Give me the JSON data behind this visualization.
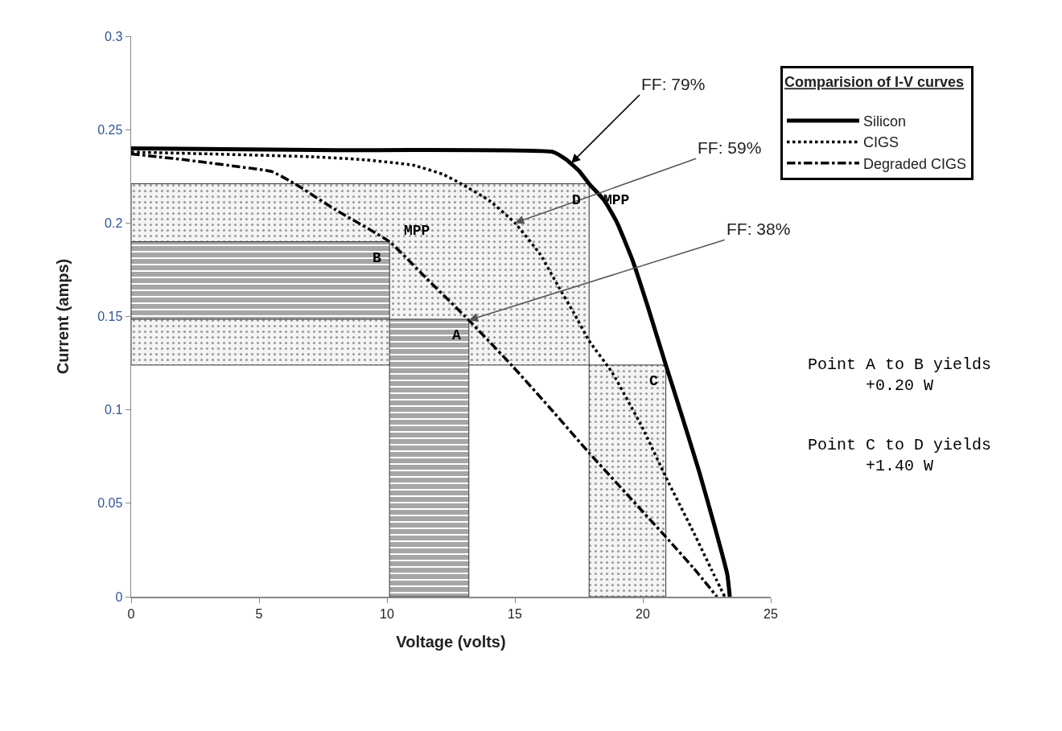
{
  "chart_data": {
    "type": "line",
    "xlabel": "Voltage (volts)",
    "ylabel": "Current (amps)",
    "legend_title": "Comparision of I-V curves",
    "legend": "top right",
    "grid": false,
    "xlim": [
      0,
      25
    ],
    "xticks": [
      0,
      5,
      10,
      15,
      20,
      25
    ],
    "ylim": [
      0,
      0.3
    ],
    "yticks": [
      0,
      0.05,
      0.1,
      0.15,
      0.2,
      0.25,
      0.3
    ],
    "series": [
      {
        "type": "area",
        "x": [
          0,
          17.9,
          17.9,
          0,
          0
        ],
        "values": [
          0.124,
          0.124,
          0.221,
          0.221,
          0.124
        ],
        "color": "#f4f4f4"
      },
      {
        "type": "area",
        "x": [
          17.9,
          20.9,
          20.9,
          17.9,
          17.9
        ],
        "values": [
          0,
          0,
          0.124,
          0.124,
          0
        ],
        "color": "#f4f4f4"
      },
      {
        "type": "area",
        "x": [
          0,
          10.1,
          10.1,
          0,
          0
        ],
        "values": [
          0.1485,
          0.1485,
          0.19,
          0.19,
          0.1485
        ],
        "color": "#a6a6a6"
      },
      {
        "type": "area",
        "x": [
          10.1,
          13.2,
          13.2,
          10.1,
          10.1
        ],
        "values": [
          0,
          0,
          0.1485,
          0.1485,
          0
        ],
        "color": "#a6a6a6"
      },
      {
        "name": "Silicon",
        "color": "#000000",
        "line_style": "solid",
        "x": [
          0,
          8,
          16.5,
          17,
          17.5,
          17.9,
          18.5,
          19,
          19.6,
          20.2,
          20.9,
          21.5,
          22.2,
          22.8,
          23.3,
          23.4
        ],
        "values": [
          0.24,
          0.239,
          0.238,
          0.234,
          0.228,
          0.221,
          0.212,
          0.2,
          0.18,
          0.155,
          0.124,
          0.098,
          0.067,
          0.038,
          0.012,
          0
        ]
      },
      {
        "name": "CIGS",
        "color": "#000000",
        "line_style": "dotted",
        "x": [
          0,
          3,
          7,
          9,
          11,
          12.2,
          12.9,
          14,
          15,
          16,
          16.7,
          17.3,
          17.9,
          18.8,
          20,
          20.9,
          22,
          22.7,
          23.2
        ],
        "values": [
          0.238,
          0.237,
          0.2355,
          0.234,
          0.231,
          0.226,
          0.221,
          0.212,
          0.2,
          0.183,
          0.166,
          0.152,
          0.137,
          0.12,
          0.09,
          0.064,
          0.034,
          0.014,
          0
        ]
      },
      {
        "name": "Degraded CIGS",
        "color": "#000000",
        "line_style": "dashdot",
        "x": [
          0,
          2,
          4,
          5.5,
          6.4,
          8,
          10.1,
          11.5,
          13.2,
          14.9,
          16.5,
          17.9,
          19.5,
          20.9,
          22,
          22.9
        ],
        "values": [
          0.237,
          0.234,
          0.2305,
          0.2275,
          0.221,
          0.207,
          0.19,
          0.171,
          0.148,
          0.1235,
          0.099,
          0.077,
          0.053,
          0.032,
          0.015,
          0
        ]
      }
    ],
    "annotations": [
      {
        "text": "FF: 79%",
        "x": 17.2,
        "y": 0.232
      },
      {
        "text": "FF: 59%",
        "x": 15,
        "y": 0.2
      },
      {
        "text": "FF: 38%",
        "x": 13.2,
        "y": 0.148
      },
      {
        "text": "MPP",
        "x": 10.1,
        "y": 0.19
      },
      {
        "text": "B",
        "x": 10.1,
        "y": 0.19
      },
      {
        "text": "A",
        "x": 13.2,
        "y": 0.1485
      },
      {
        "text": "C",
        "x": 20.9,
        "y": 0.124
      },
      {
        "text": "D",
        "x": 17.9,
        "y": 0.221
      },
      {
        "text": "MPP",
        "x": 17.9,
        "y": 0.221
      },
      "Point A to B yields\n+0.20 W",
      "Point C to D yields\n+1.40 W"
    ]
  }
}
